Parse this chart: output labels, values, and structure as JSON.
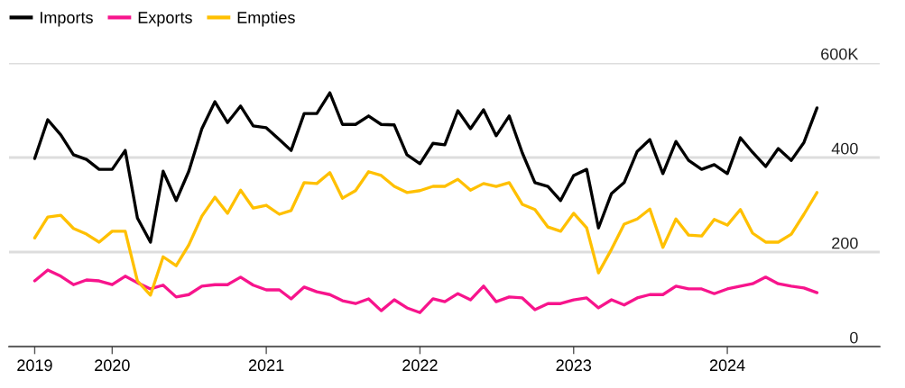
{
  "chart_data": {
    "type": "line",
    "x": [
      "2019-07",
      "2019-08",
      "2019-09",
      "2019-10",
      "2019-11",
      "2019-12",
      "2020-01",
      "2020-02",
      "2020-03",
      "2020-04",
      "2020-05",
      "2020-06",
      "2020-07",
      "2020-08",
      "2020-09",
      "2020-10",
      "2020-11",
      "2020-12",
      "2021-01",
      "2021-02",
      "2021-03",
      "2021-04",
      "2021-05",
      "2021-06",
      "2021-07",
      "2021-08",
      "2021-09",
      "2021-10",
      "2021-11",
      "2021-12",
      "2022-01",
      "2022-02",
      "2022-03",
      "2022-04",
      "2022-05",
      "2022-06",
      "2022-07",
      "2022-08",
      "2022-09",
      "2022-10",
      "2022-11",
      "2022-12",
      "2023-01",
      "2023-02",
      "2023-03",
      "2023-04",
      "2023-05",
      "2023-06",
      "2023-07",
      "2023-08",
      "2023-09",
      "2023-10",
      "2023-11",
      "2023-12",
      "2024-01",
      "2024-02",
      "2024-03",
      "2024-04",
      "2024-05",
      "2024-06",
      "2024-07",
      "2024-08"
    ],
    "series": [
      {
        "name": "Imports",
        "color": "#000000",
        "values": [
          398,
          480,
          448,
          406,
          396,
          375,
          375,
          415,
          272,
          221,
          371,
          309,
          371,
          461,
          518,
          474,
          509,
          467,
          463,
          438,
          415,
          493,
          493,
          537,
          470,
          470,
          488,
          470,
          469,
          406,
          387,
          430,
          427,
          499,
          461,
          501,
          446,
          488,
          410,
          347,
          339,
          309,
          362,
          375,
          251,
          324,
          347,
          413,
          438,
          366,
          434,
          394,
          375,
          385,
          366,
          442,
          411,
          381,
          419,
          394,
          432,
          505
        ]
      },
      {
        "name": "Exports",
        "color": "#f7148c",
        "values": [
          139,
          162,
          149,
          131,
          141,
          139,
          131,
          149,
          135,
          122,
          130,
          105,
          110,
          128,
          131,
          131,
          147,
          130,
          120,
          120,
          101,
          126,
          116,
          110,
          97,
          91,
          101,
          76,
          99,
          82,
          72,
          101,
          95,
          112,
          99,
          128,
          95,
          105,
          103,
          78,
          91,
          91,
          99,
          103,
          82,
          99,
          88,
          103,
          110,
          110,
          128,
          122,
          122,
          112,
          122,
          128,
          133,
          147,
          133,
          128,
          124,
          114
        ]
      },
      {
        "name": "Empties",
        "color": "#ffc000",
        "values": [
          230,
          274,
          278,
          250,
          238,
          221,
          244,
          244,
          139,
          109,
          190,
          171,
          215,
          276,
          316,
          282,
          331,
          293,
          299,
          280,
          288,
          347,
          345,
          368,
          314,
          330,
          370,
          362,
          339,
          326,
          330,
          339,
          339,
          354,
          331,
          345,
          339,
          347,
          301,
          290,
          253,
          244,
          282,
          251,
          156,
          206,
          259,
          270,
          291,
          210,
          270,
          236,
          234,
          269,
          257,
          290,
          240,
          221,
          221,
          238,
          280,
          326
        ]
      }
    ],
    "xlim": [
      "2019-05-01",
      "2024-12-28"
    ],
    "xticks": [
      {
        "value": "2019-07",
        "label": "2019"
      },
      {
        "value": "2020-01",
        "label": "2020"
      },
      {
        "value": "2021-01",
        "label": "2021"
      },
      {
        "value": "2022-01",
        "label": "2022"
      },
      {
        "value": "2023-01",
        "label": "2023"
      },
      {
        "value": "2024-01",
        "label": "2024"
      }
    ],
    "ylim": [
      0,
      600
    ],
    "yticks": [
      0,
      200,
      400,
      {
        "value": 600,
        "label": "600K"
      }
    ],
    "grid": "y",
    "legend": "top left",
    "line_style": "solid",
    "marker": "none"
  }
}
